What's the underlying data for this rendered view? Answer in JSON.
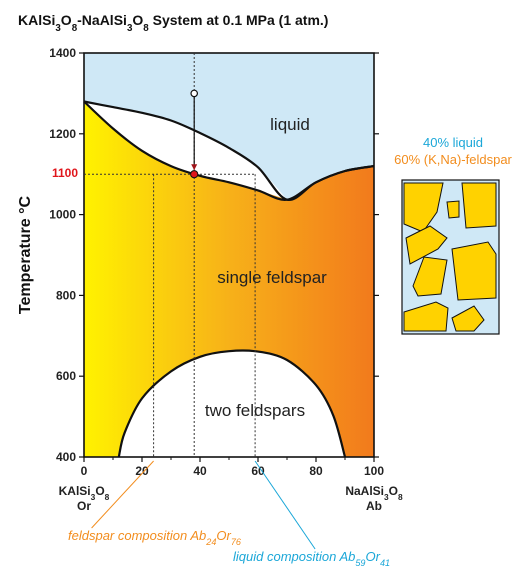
{
  "title": "KAlSi3O8-NaAlSi3O8 System at 0.1 MPa (1 atm.)",
  "title_parts": [
    {
      "t": "KAlSi",
      "sub": false
    },
    {
      "t": "3",
      "sub": true
    },
    {
      "t": "O",
      "sub": false
    },
    {
      "t": "8",
      "sub": true
    },
    {
      "t": "-NaAlSi",
      "sub": false
    },
    {
      "t": "3",
      "sub": true
    },
    {
      "t": "O",
      "sub": false
    },
    {
      "t": "8",
      "sub": true
    },
    {
      "t": " System at 0.1 MPa (1 atm.)",
      "sub": false
    }
  ],
  "y_axis_label": "Temperature °C",
  "y_ticks": [
    "400",
    "600",
    "800",
    "1000",
    "1200",
    "1400"
  ],
  "x_ticks": [
    "0",
    "20",
    "40",
    "60",
    "80",
    "100"
  ],
  "highlight_temperature": "1100",
  "left_endmember": {
    "formula_parts": [
      {
        "t": "KAlSi",
        "sub": false
      },
      {
        "t": "3",
        "sub": true
      },
      {
        "t": "O",
        "sub": false
      },
      {
        "t": "8",
        "sub": true
      }
    ],
    "abbrev": "Or"
  },
  "right_endmember": {
    "formula_parts": [
      {
        "t": "NaAlSi",
        "sub": false
      },
      {
        "t": "3",
        "sub": true
      },
      {
        "t": "O",
        "sub": false
      },
      {
        "t": "8",
        "sub": true
      }
    ],
    "abbrev": "Ab"
  },
  "fields": {
    "liquid": "liquid",
    "single_feldspar": "single feldspar",
    "two_feldspars": "two feldspars"
  },
  "proportions": {
    "liquid_label": "40% liquid",
    "feldspar_label": "60% (K,Na)-feldspar"
  },
  "annotations": {
    "feldspar_parts": [
      {
        "t": "feldspar composition Ab",
        "sub": false
      },
      {
        "t": "24",
        "sub": true
      },
      {
        "t": "Or",
        "sub": false
      },
      {
        "t": "76",
        "sub": true
      }
    ],
    "liquid_parts": [
      {
        "t": "liquid composition Ab",
        "sub": false
      },
      {
        "t": "59",
        "sub": true
      },
      {
        "t": "Or",
        "sub": false
      },
      {
        "t": "41",
        "sub": true
      }
    ]
  },
  "chart_data": {
    "type": "phase-diagram",
    "xlim": [
      0,
      100
    ],
    "ylim": [
      400,
      1400
    ],
    "x_units": "mol% Ab",
    "y_units": "°C",
    "liquidus": {
      "x": [
        0,
        10,
        20,
        30,
        40,
        50,
        60,
        70,
        80,
        90,
        100
      ],
      "y": [
        1280,
        1266,
        1252,
        1233,
        1202,
        1165,
        1117,
        1037,
        1080,
        1108,
        1120
      ]
    },
    "solidus": {
      "x": [
        0,
        10,
        20,
        30,
        40,
        50,
        60,
        70,
        80,
        90,
        100
      ],
      "y": [
        1280,
        1213,
        1158,
        1120,
        1096,
        1080,
        1060,
        1037,
        1080,
        1108,
        1120
      ]
    },
    "solvus": {
      "x": [
        12,
        14,
        20,
        30,
        40,
        50,
        60,
        70,
        80,
        86,
        90
      ],
      "y": [
        400,
        460,
        545,
        612,
        648,
        662,
        661,
        640,
        578,
        502,
        400
      ]
    },
    "bulk_composition": {
      "x": 38,
      "start_temperature": 1300,
      "end_temperature": 1100
    },
    "tie_line": {
      "temperature": 1100,
      "feldspar_x": 24,
      "liquid_x": 59
    },
    "proportions": {
      "liquid_percent": 40,
      "feldspar_percent": 60
    },
    "colors": {
      "liquid": "#cfe8f6",
      "solid_left": "#fff200",
      "solid_mid": "#f7b119",
      "solid_right": "#f27a1c",
      "highlight": "#e0151b",
      "feldspar_note": "#f28d1e",
      "liquid_note": "#1ba7d8"
    }
  }
}
